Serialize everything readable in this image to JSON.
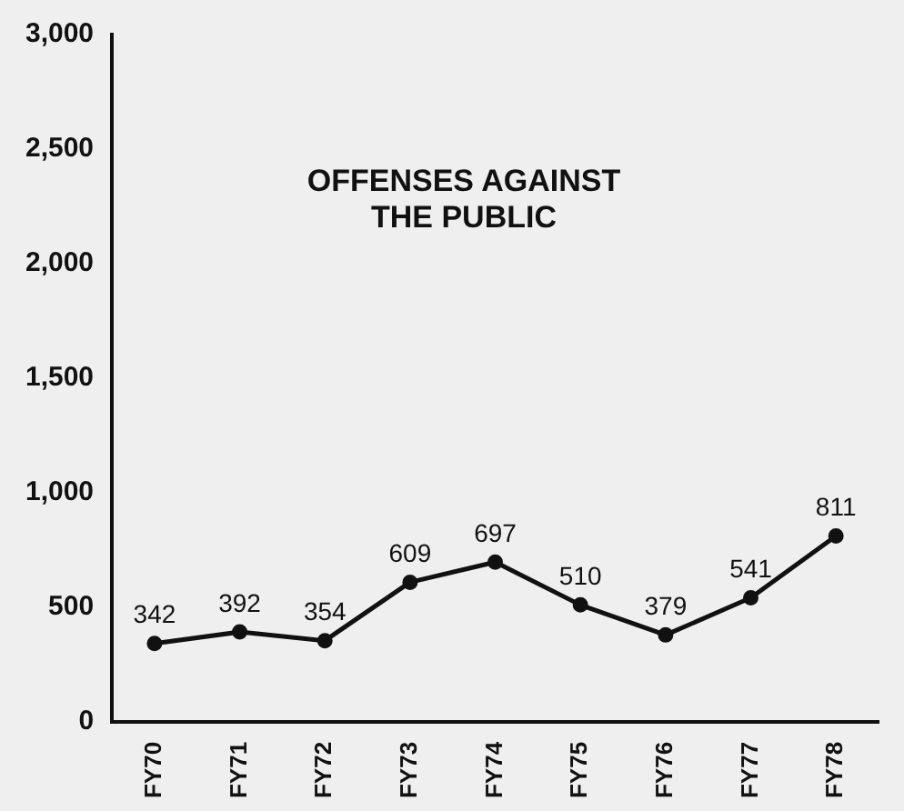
{
  "chart_data": {
    "type": "line",
    "title": "OFFENSES AGAINST THE PUBLIC",
    "categories": [
      "FY70",
      "FY71",
      "FY72",
      "FY73",
      "FY74",
      "FY75",
      "FY76",
      "FY77",
      "FY78"
    ],
    "values": [
      342,
      392,
      354,
      609,
      697,
      510,
      379,
      541,
      811
    ],
    "color": "#111111",
    "ylim": [
      0,
      3000
    ],
    "yticks": [
      {
        "value": 0,
        "label": "0"
      },
      {
        "value": 500,
        "label": "500"
      },
      {
        "value": 1000,
        "label": "1,000"
      },
      {
        "value": 1500,
        "label": "1,500"
      },
      {
        "value": 2000,
        "label": "2,000"
      },
      {
        "value": 2500,
        "label": "2,500"
      },
      {
        "value": 3000,
        "label": "3,000"
      }
    ],
    "grid": false,
    "legend": false,
    "marker": "circle",
    "line_style": "solid",
    "data_labels": true
  }
}
